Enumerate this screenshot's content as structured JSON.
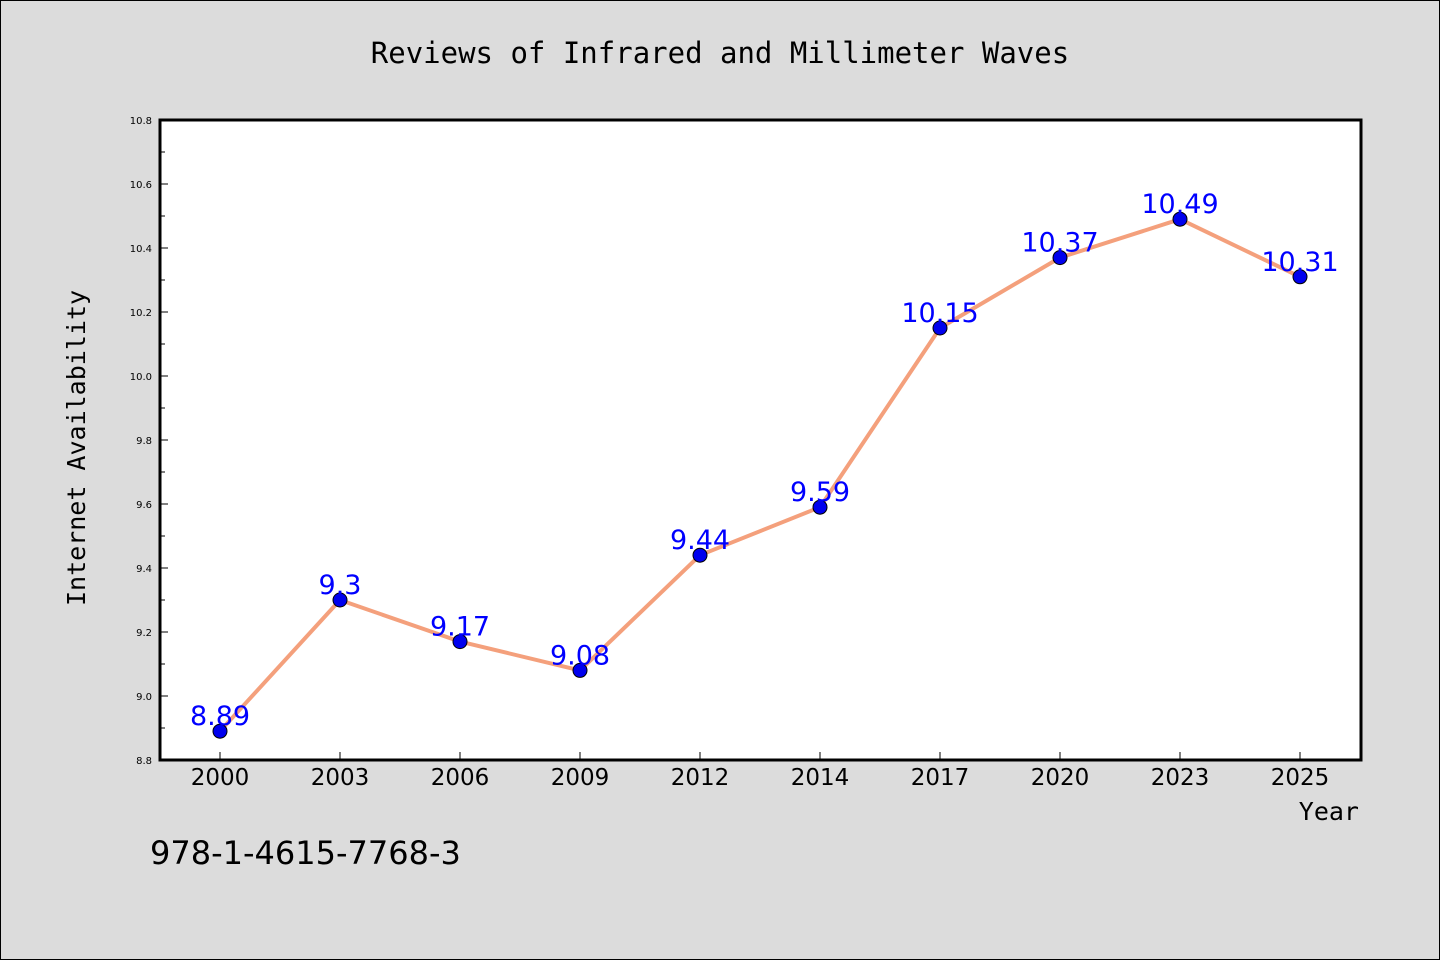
{
  "chart_data": {
    "type": "line",
    "title": "Reviews of Infrared and Millimeter Waves",
    "xlabel": "Year",
    "ylabel": "Internet Availability",
    "categories": [
      "2000",
      "2003",
      "2006",
      "2009",
      "2012",
      "2014",
      "2017",
      "2020",
      "2023",
      "2025"
    ],
    "series": [
      {
        "values": [
          8.89,
          9.3,
          9.17,
          9.08,
          9.44,
          9.59,
          10.15,
          10.37,
          10.49,
          10.31
        ]
      }
    ],
    "data_labels": [
      "8.89",
      "9.3",
      "9.17",
      "9.08",
      "9.44",
      "9.59",
      "10.15",
      "10.37",
      "10.49",
      "10.31"
    ],
    "ylim": [
      8.8,
      10.8
    ],
    "yticks": [
      "8.8",
      "9.0",
      "9.2",
      "9.4",
      "9.6",
      "9.8",
      "10.0",
      "10.2",
      "10.4",
      "10.6",
      "10.8"
    ],
    "grid": false,
    "colors": {
      "line": "#f4a07c",
      "marker": "#0000ee",
      "marker_edge": "#000000",
      "label": "#0000ff",
      "plot_bg": "#ffffff",
      "page_bg": "#dcdcdc"
    }
  },
  "footer": {
    "isbn": "978-1-4615-7768-3"
  }
}
